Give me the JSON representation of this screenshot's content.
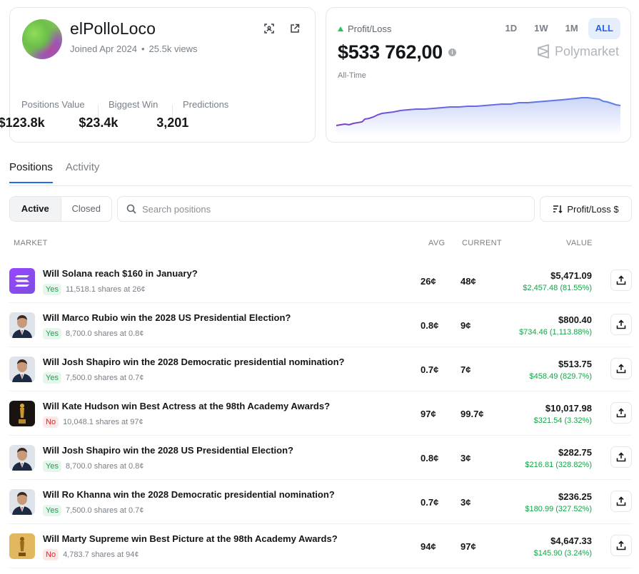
{
  "profile": {
    "username": "elPolloLoco",
    "joined": "Joined Apr 2024",
    "views": "25.5k views",
    "stats": [
      {
        "label": "Positions Value",
        "value": "$123.8k"
      },
      {
        "label": "Biggest Win",
        "value": "$23.4k"
      },
      {
        "label": "Predictions",
        "value": "3,201"
      }
    ]
  },
  "pnl": {
    "label": "Profit/Loss",
    "value": "$533 762,00",
    "period": "All-Time",
    "brand": "Polymarket",
    "ranges": [
      "1D",
      "1W",
      "1M",
      "ALL"
    ],
    "active_range": "ALL"
  },
  "tabs": [
    "Positions",
    "Activity"
  ],
  "filters": {
    "segments": [
      "Active",
      "Closed"
    ],
    "search_placeholder": "Search positions",
    "sort_label": "Profit/Loss $"
  },
  "table": {
    "headers": {
      "market": "MARKET",
      "avg": "AVG",
      "current": "CURRENT",
      "value": "VALUE"
    },
    "rows": [
      {
        "question": "Will Solana reach $160 in January?",
        "side": "Yes",
        "shares": "11,518.1 shares at 26¢",
        "avg": "26¢",
        "current": "48¢",
        "value": "$5,471.09",
        "gain": "$2,457.48 (81.55%)",
        "thumb": "solana"
      },
      {
        "question": "Will Marco Rubio win the 2028 US Presidential Election?",
        "side": "Yes",
        "shares": "8,700.0 shares at 0.8¢",
        "avg": "0.8¢",
        "current": "9¢",
        "value": "$800.40",
        "gain": "$734.46 (1,113.88%)",
        "thumb": "person"
      },
      {
        "question": "Will Josh Shapiro win the 2028 Democratic presidential nomination?",
        "side": "Yes",
        "shares": "7,500.0 shares at 0.7¢",
        "avg": "0.7¢",
        "current": "7¢",
        "value": "$513.75",
        "gain": "$458.49 (829.7%)",
        "thumb": "person"
      },
      {
        "question": "Will Kate Hudson win Best Actress at the 98th Academy Awards?",
        "side": "No",
        "shares": "10,048.1 shares at 97¢",
        "avg": "97¢",
        "current": "99.7¢",
        "value": "$10,017.98",
        "gain": "$321.54 (3.32%)",
        "thumb": "oscar-dark"
      },
      {
        "question": "Will Josh Shapiro win the 2028 US Presidential Election?",
        "side": "Yes",
        "shares": "8,700.0 shares at 0.8¢",
        "avg": "0.8¢",
        "current": "3¢",
        "value": "$282.75",
        "gain": "$216.81 (328.82%)",
        "thumb": "person"
      },
      {
        "question": "Will Ro Khanna win the 2028 Democratic presidential nomination?",
        "side": "Yes",
        "shares": "7,500.0 shares at 0.7¢",
        "avg": "0.7¢",
        "current": "3¢",
        "value": "$236.25",
        "gain": "$180.99 (327.52%)",
        "thumb": "person"
      },
      {
        "question": "Will Marty Supreme win Best Picture at the 98th Academy Awards?",
        "side": "No",
        "shares": "4,783.7 shares at 94¢",
        "avg": "94¢",
        "current": "97¢",
        "value": "$4,647.33",
        "gain": "$145.90 (3.24%)",
        "thumb": "oscar-gold"
      }
    ]
  },
  "colors": {
    "accent": "#2563eb",
    "gain": "#16a34a",
    "loss": "#dc2626",
    "chart_line": "#6d5ce7"
  }
}
